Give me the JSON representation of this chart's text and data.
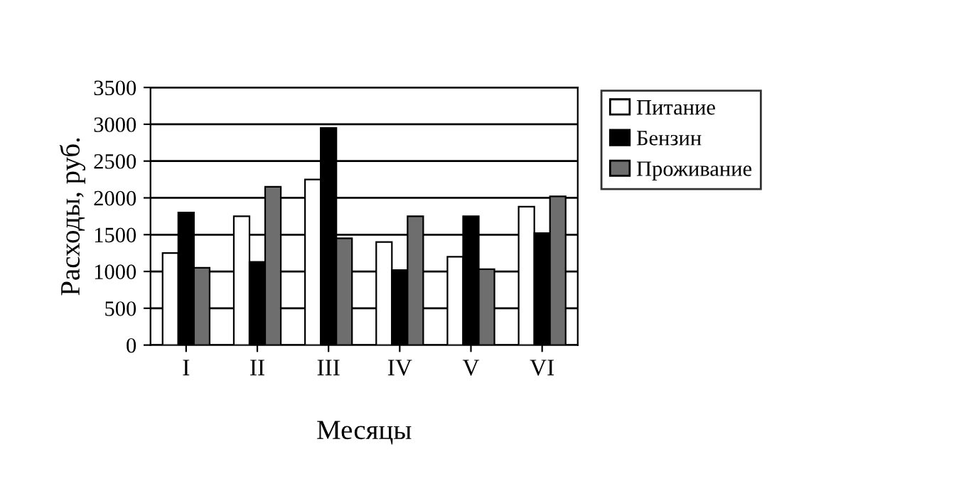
{
  "chart_data": {
    "type": "bar",
    "xlabel": "Месяцы",
    "ylabel": "Расходы, руб.",
    "categories": [
      "I",
      "II",
      "III",
      "IV",
      "V",
      "VI"
    ],
    "series": [
      {
        "name": "Питание",
        "color": "#ffffff",
        "values": [
          1250,
          1750,
          2250,
          1400,
          1200,
          1880
        ]
      },
      {
        "name": "Бензин",
        "color": "#000000",
        "values": [
          1800,
          1130,
          2950,
          1020,
          1750,
          1520
        ]
      },
      {
        "name": "Проживание",
        "color": "#6e6e6e",
        "values": [
          1050,
          2150,
          1450,
          1750,
          1030,
          2020
        ]
      }
    ],
    "ylim": [
      0,
      3500
    ],
    "yticks": [
      0,
      500,
      1000,
      1500,
      2000,
      2500,
      3000,
      3500
    ],
    "grid": "y",
    "legend": "right"
  }
}
